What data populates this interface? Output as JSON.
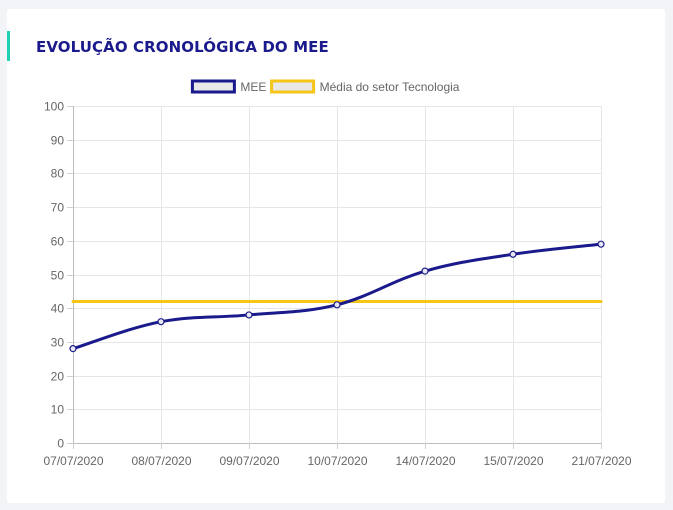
{
  "card": {
    "title": "EVOLUÇÃO CRONOLÓGICA DO MEE",
    "accent_color": "#1fd1b4",
    "title_color": "#1a1a8c"
  },
  "chart_data": {
    "type": "line",
    "title": "",
    "xlabel": "",
    "ylabel": "",
    "categories": [
      "07/07/2020",
      "08/07/2020",
      "09/07/2020",
      "10/07/2020",
      "14/07/2020",
      "15/07/2020",
      "21/07/2020"
    ],
    "ylim": [
      0,
      100
    ],
    "yticks": [
      0,
      10,
      20,
      30,
      40,
      50,
      60,
      70,
      80,
      90,
      100
    ],
    "grid": true,
    "legend_position": "top-center",
    "series": [
      {
        "name": "MEE",
        "values": [
          28,
          36,
          38,
          41,
          51,
          56,
          59
        ],
        "color": "#1a1a8c",
        "markers": true
      },
      {
        "name": "Média do setor Tecnologia",
        "values": [
          42,
          42,
          42,
          42,
          42,
          42,
          42
        ],
        "color": "#f5c518",
        "markers": false
      }
    ]
  }
}
